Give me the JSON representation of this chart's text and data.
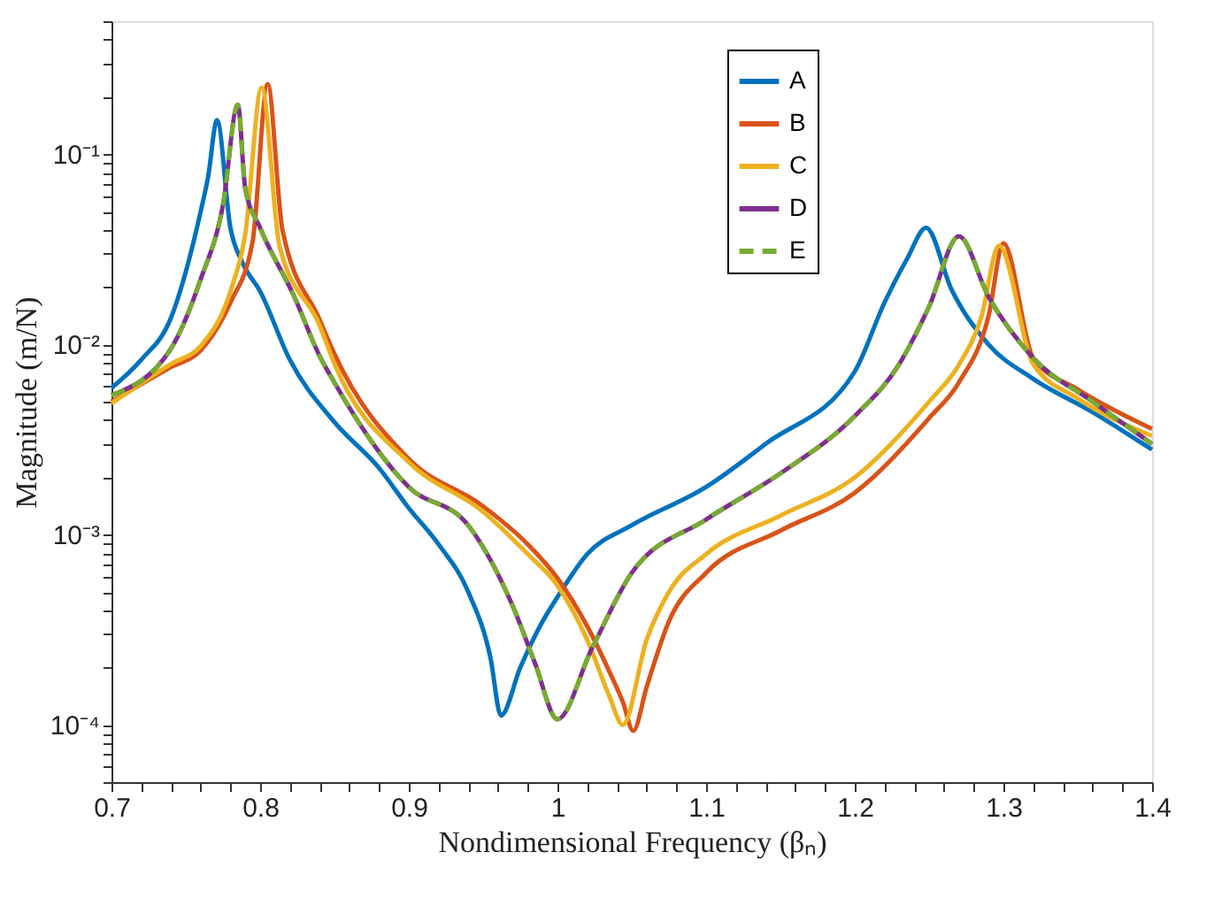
{
  "chart_data": {
    "type": "line",
    "xlabel": "Nondimensional Frequency (βₙ)",
    "ylabel": "Magnitude (m/N)",
    "log": "y",
    "grid": false,
    "legend": "top right",
    "line_style": "solid",
    "marker": "none",
    "xlim": [
      0.7,
      1.4
    ],
    "xticks": [
      0.7,
      {
        "value": 0.72,
        "label": null
      },
      {
        "value": 0.74,
        "label": null
      },
      {
        "value": 0.76,
        "label": null
      },
      {
        "value": 0.78,
        "label": null
      },
      0.8,
      {
        "value": 0.82,
        "label": null
      },
      {
        "value": 0.84,
        "label": null
      },
      {
        "value": 0.86,
        "label": null
      },
      {
        "value": 0.88,
        "label": null
      },
      0.9,
      {
        "value": 0.92,
        "label": null
      },
      {
        "value": 0.94,
        "label": null
      },
      {
        "value": 0.96,
        "label": null
      },
      {
        "value": 0.98,
        "label": null
      },
      1,
      {
        "value": 1.02,
        "label": null
      },
      {
        "value": 1.04,
        "label": null
      },
      {
        "value": 1.06,
        "label": null
      },
      {
        "value": 1.08,
        "label": null
      },
      1.1,
      {
        "value": 1.12,
        "label": null
      },
      {
        "value": 1.14,
        "label": null
      },
      {
        "value": 1.16,
        "label": null
      },
      {
        "value": 1.18,
        "label": null
      },
      1.2,
      {
        "value": 1.22,
        "label": null
      },
      {
        "value": 1.24,
        "label": null
      },
      {
        "value": 1.26,
        "label": null
      },
      {
        "value": 1.28,
        "label": null
      },
      1.3,
      {
        "value": 1.32,
        "label": null
      },
      {
        "value": 1.34,
        "label": null
      },
      {
        "value": 1.36,
        "label": null
      },
      {
        "value": 1.38,
        "label": null
      },
      1.4
    ],
    "ylim": [
      5e-05,
      0.5
    ],
    "yticks": [
      {
        "value": 5e-05,
        "label": null
      },
      {
        "value": 6e-05,
        "label": null
      },
      {
        "value": 7e-05,
        "label": null
      },
      {
        "value": 8e-05,
        "label": null
      },
      {
        "value": 9e-05,
        "label": null
      },
      {
        "value": 0.0001,
        "label": "10⁻⁴"
      },
      {
        "value": 0.0002,
        "label": null
      },
      {
        "value": 0.0003,
        "label": null
      },
      {
        "value": 0.0004,
        "label": null
      },
      {
        "value": 0.0005,
        "label": null
      },
      {
        "value": 0.0006,
        "label": null
      },
      {
        "value": 0.0007,
        "label": null
      },
      {
        "value": 0.0008,
        "label": null
      },
      {
        "value": 0.0009,
        "label": null
      },
      {
        "value": 0.001,
        "label": "10⁻³"
      },
      {
        "value": 0.002,
        "label": null
      },
      {
        "value": 0.003,
        "label": null
      },
      {
        "value": 0.004,
        "label": null
      },
      {
        "value": 0.005,
        "label": null
      },
      {
        "value": 0.006,
        "label": null
      },
      {
        "value": 0.007,
        "label": null
      },
      {
        "value": 0.008,
        "label": null
      },
      {
        "value": 0.009,
        "label": null
      },
      {
        "value": 0.01,
        "label": "10⁻²"
      },
      {
        "value": 0.02,
        "label": null
      },
      {
        "value": 0.03,
        "label": null
      },
      {
        "value": 0.04,
        "label": null
      },
      {
        "value": 0.05,
        "label": null
      },
      {
        "value": 0.06,
        "label": null
      },
      {
        "value": 0.07,
        "label": null
      },
      {
        "value": 0.08,
        "label": null
      },
      {
        "value": 0.09,
        "label": null
      },
      {
        "value": 0.1,
        "label": "10⁻¹"
      },
      {
        "value": 0.2,
        "label": null
      },
      {
        "value": 0.3,
        "label": null
      },
      {
        "value": 0.4,
        "label": null
      },
      {
        "value": 0.5,
        "label": null
      }
    ],
    "series": [
      {
        "name": "A",
        "color": "#0072bd",
        "x": [
          0.7,
          0.72,
          0.74,
          0.76,
          0.765,
          0.771,
          0.78,
          0.788,
          0.8,
          0.82,
          0.85,
          0.88,
          0.9,
          0.92,
          0.94,
          0.955,
          0.962,
          0.975,
          0.99,
          1.0,
          1.02,
          1.05,
          1.1,
          1.14,
          1.2,
          1.22,
          1.235,
          1.248,
          1.265,
          1.29,
          1.32,
          1.36,
          1.4
        ],
        "values": [
          0.0059,
          0.0083,
          0.0138,
          0.05,
          0.076,
          0.151,
          0.041,
          0.027,
          0.019,
          0.0083,
          0.0039,
          0.00224,
          0.00138,
          0.00089,
          0.0005,
          0.000224,
          0.000112,
          0.0002,
          0.00035,
          0.00047,
          0.00079,
          0.00112,
          0.00178,
          0.003,
          0.0072,
          0.0166,
          0.028,
          0.041,
          0.0195,
          0.01,
          0.0066,
          0.0044,
          0.0028
        ]
      },
      {
        "name": "B",
        "color": "#d95319",
        "x": [
          0.7,
          0.74,
          0.76,
          0.78,
          0.795,
          0.805,
          0.815,
          0.84,
          0.85,
          0.9,
          0.95,
          0.98,
          1.0,
          1.02,
          1.035,
          1.044,
          1.051,
          1.06,
          1.075,
          1.1,
          1.15,
          1.2,
          1.25,
          1.27,
          1.29,
          1.3,
          1.32,
          1.35,
          1.4
        ],
        "values": [
          0.005,
          0.0076,
          0.0093,
          0.0166,
          0.035,
          0.234,
          0.04,
          0.0135,
          0.0089,
          0.0025,
          0.00141,
          0.00089,
          0.00059,
          0.00033,
          0.00019,
          0.000132,
          9.3e-05,
          0.000158,
          0.00035,
          0.00063,
          0.00105,
          0.00166,
          0.0041,
          0.0063,
          0.0141,
          0.034,
          0.0085,
          0.0058,
          0.0036
        ]
      },
      {
        "name": "C",
        "color": "#edb120",
        "x": [
          0.7,
          0.74,
          0.76,
          0.78,
          0.79,
          0.801,
          0.813,
          0.84,
          0.85,
          0.9,
          0.95,
          0.98,
          1.0,
          1.02,
          1.035,
          1.044,
          1.06,
          1.075,
          1.1,
          1.15,
          1.2,
          1.25,
          1.27,
          1.285,
          1.297,
          1.32,
          1.35,
          1.4
        ],
        "values": [
          0.0049,
          0.0079,
          0.0098,
          0.019,
          0.038,
          0.224,
          0.033,
          0.0126,
          0.0079,
          0.0024,
          0.00132,
          0.00079,
          0.00054,
          0.00028,
          0.000141,
          0.0001,
          0.00028,
          0.0005,
          0.00079,
          0.00126,
          0.002,
          0.005,
          0.0078,
          0.0138,
          0.033,
          0.0079,
          0.0052,
          0.0033
        ]
      },
      {
        "name": "D",
        "color": "#7e2f8e",
        "x": [
          0.7,
          0.74,
          0.76,
          0.775,
          0.785,
          0.79,
          0.8,
          0.823,
          0.84,
          0.85,
          0.9,
          0.94,
          0.97,
          0.985,
          1.0,
          1.023,
          1.05,
          1.1,
          1.15,
          1.2,
          1.23,
          1.25,
          1.27,
          1.29,
          1.32,
          1.36,
          1.4
        ],
        "values": [
          0.0054,
          0.0095,
          0.022,
          0.054,
          0.182,
          0.066,
          0.041,
          0.0178,
          0.0087,
          0.0063,
          0.00178,
          0.00112,
          0.00042,
          0.00021,
          0.000107,
          0.00025,
          0.00063,
          0.0012,
          0.0021,
          0.0042,
          0.0079,
          0.0158,
          0.037,
          0.0178,
          0.0085,
          0.005,
          0.003
        ]
      },
      {
        "name": "E",
        "color": "#77ac30",
        "line_style": "dashed",
        "x": [
          0.7,
          0.74,
          0.76,
          0.775,
          0.785,
          0.79,
          0.8,
          0.823,
          0.84,
          0.85,
          0.9,
          0.94,
          0.97,
          0.985,
          1.0,
          1.023,
          1.05,
          1.1,
          1.15,
          1.2,
          1.23,
          1.25,
          1.27,
          1.29,
          1.32,
          1.36,
          1.4
        ],
        "values": [
          0.0054,
          0.0095,
          0.022,
          0.054,
          0.182,
          0.066,
          0.041,
          0.0178,
          0.0087,
          0.0063,
          0.00178,
          0.00112,
          0.00042,
          0.00021,
          0.000107,
          0.00025,
          0.00063,
          0.0012,
          0.0021,
          0.0042,
          0.0079,
          0.0158,
          0.037,
          0.0178,
          0.0085,
          0.005,
          0.003
        ]
      }
    ]
  }
}
